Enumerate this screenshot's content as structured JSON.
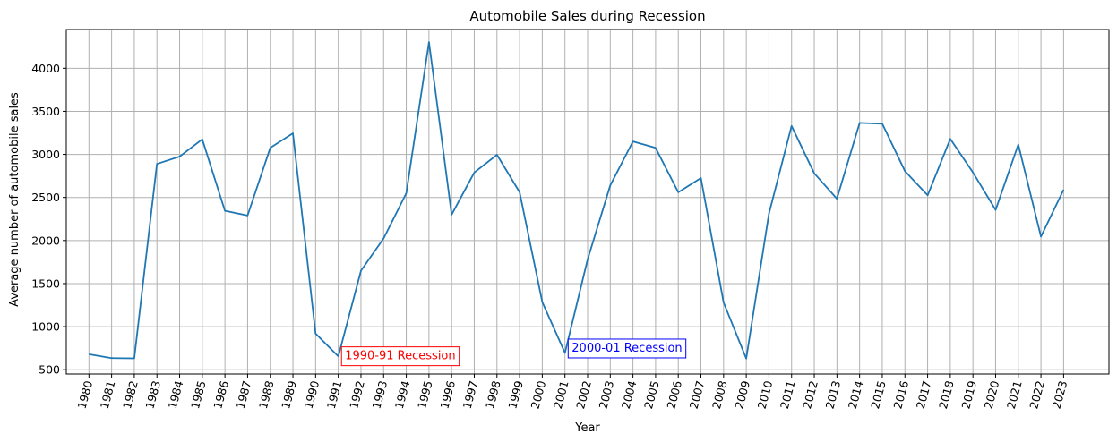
{
  "chart_data": {
    "type": "line",
    "title": "Automobile Sales during Recession",
    "xlabel": "Year",
    "ylabel": "Average number of automobile sales",
    "x": [
      1980,
      1981,
      1982,
      1983,
      1984,
      1985,
      1986,
      1987,
      1988,
      1989,
      1990,
      1991,
      1992,
      1993,
      1994,
      1995,
      1996,
      1997,
      1998,
      1999,
      2000,
      2001,
      2002,
      2003,
      2004,
      2005,
      2006,
      2007,
      2008,
      2009,
      2010,
      2011,
      2012,
      2013,
      2014,
      2015,
      2016,
      2017,
      2018,
      2019,
      2020,
      2021,
      2022,
      2023
    ],
    "series": [
      {
        "values": [
          680,
          635,
          632,
          2890,
          2975,
          3175,
          2345,
          2290,
          3075,
          3245,
          920,
          655,
          1650,
          2025,
          2550,
          4305,
          2300,
          2790,
          2995,
          2560,
          1285,
          695,
          1780,
          2640,
          3150,
          3075,
          2560,
          2725,
          1280,
          630,
          2310,
          3330,
          2780,
          2485,
          3365,
          3355,
          2805,
          2525,
          3180,
          2790,
          2355,
          3115,
          2045,
          2590
        ],
        "color": "#1f77b4"
      }
    ],
    "ylim": [
      450,
      4450
    ],
    "xlim": [
      1979,
      2025
    ],
    "yticks": [
      500,
      1000,
      1500,
      2000,
      2500,
      3000,
      3500,
      4000
    ],
    "grid": true,
    "annotations": [
      {
        "text": "1990-91 Recession",
        "x": 1991.3,
        "y": 620,
        "color": "#ff0000"
      },
      {
        "text": "2000-01 Recession",
        "x": 2001.3,
        "y": 710,
        "color": "#0000ff"
      }
    ]
  }
}
